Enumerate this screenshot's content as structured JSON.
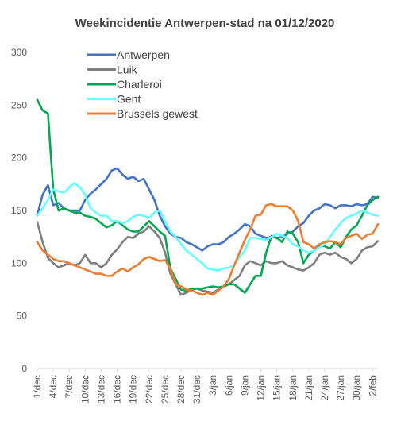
{
  "chart_data": {
    "type": "line",
    "title": "Weekincidentie Antwerpen-stad na 01/12/2020",
    "xlabel": "",
    "ylabel": "",
    "ylim": [
      0,
      300
    ],
    "yticks": [
      "0",
      "50",
      "100",
      "150",
      "200",
      "250",
      "300"
    ],
    "grid": false,
    "legend_position": "top-left",
    "x_tick_labels": [
      "1/dec",
      "4/dec",
      "7/dec",
      "10/dec",
      "13/dec",
      "16/dec",
      "19/dec",
      "22/dec",
      "25/dec",
      "28/dec",
      "31/dec",
      "3/jan",
      "6/jan",
      "9/jan",
      "12/jan",
      "15/jan",
      "18/jan",
      "21/jan",
      "24/jan",
      "27/jan",
      "30/jan",
      "2/feb"
    ],
    "x": [
      "1/dec",
      "2/dec",
      "3/dec",
      "4/dec",
      "5/dec",
      "6/dec",
      "7/dec",
      "8/dec",
      "9/dec",
      "10/dec",
      "11/dec",
      "12/dec",
      "13/dec",
      "14/dec",
      "15/dec",
      "16/dec",
      "17/dec",
      "18/dec",
      "19/dec",
      "20/dec",
      "21/dec",
      "22/dec",
      "23/dec",
      "24/dec",
      "25/dec",
      "26/dec",
      "27/dec",
      "28/dec",
      "29/dec",
      "30/dec",
      "31/dec",
      "1/jan",
      "2/jan",
      "3/jan",
      "4/jan",
      "5/jan",
      "6/jan",
      "7/jan",
      "8/jan",
      "9/jan",
      "10/jan",
      "11/jan",
      "12/jan",
      "13/jan",
      "14/jan",
      "15/jan",
      "16/jan",
      "17/jan",
      "18/jan",
      "19/jan",
      "20/jan",
      "21/jan",
      "22/jan",
      "23/jan",
      "24/jan",
      "25/jan",
      "26/jan",
      "27/jan",
      "28/jan",
      "29/jan",
      "30/jan",
      "31/jan",
      "1/feb",
      "2/feb",
      "3/feb"
    ],
    "series": [
      {
        "name": "Antwerpen",
        "color": "#4472c4",
        "values": [
          146,
          165,
          174,
          155,
          157,
          152,
          150,
          150,
          150,
          160,
          166,
          170,
          175,
          180,
          188,
          190,
          184,
          180,
          182,
          178,
          180,
          170,
          160,
          145,
          135,
          128,
          125,
          124,
          120,
          118,
          115,
          112,
          116,
          118,
          118,
          120,
          125,
          128,
          132,
          137,
          135,
          128,
          126,
          124,
          125,
          124,
          125,
          128,
          130,
          135,
          138,
          145,
          150,
          152,
          156,
          155,
          152,
          155,
          155,
          154,
          156,
          155,
          156,
          163,
          162
        ]
      },
      {
        "name": "Luik",
        "color": "#7f7f7f",
        "values": [
          139,
          120,
          105,
          100,
          96,
          98,
          100,
          98,
          100,
          108,
          100,
          100,
          96,
          100,
          108,
          113,
          120,
          125,
          124,
          128,
          130,
          135,
          130,
          124,
          110,
          90,
          80,
          70,
          72,
          75,
          76,
          74,
          73,
          72,
          75,
          78,
          80,
          84,
          88,
          98,
          102,
          100,
          98,
          102,
          100,
          100,
          102,
          98,
          96,
          94,
          93,
          96,
          100,
          108,
          110,
          108,
          110,
          106,
          104,
          100,
          104,
          112,
          115,
          116,
          121
        ]
      },
      {
        "name": "Charleroi",
        "color": "#00a650",
        "values": [
          255,
          245,
          242,
          170,
          150,
          152,
          150,
          148,
          148,
          145,
          144,
          142,
          138,
          134,
          136,
          140,
          136,
          132,
          130,
          130,
          135,
          140,
          135,
          130,
          126,
          95,
          85,
          75,
          74,
          76,
          76,
          76,
          77,
          78,
          77,
          78,
          80,
          80,
          76,
          72,
          80,
          88,
          88,
          110,
          126,
          124,
          120,
          130,
          128,
          120,
          100,
          108,
          112,
          117,
          116,
          114,
          120,
          115,
          125,
          132,
          136,
          145,
          155,
          160,
          163
        ]
      },
      {
        "name": "Gent",
        "color": "#66ffff",
        "values": [
          145,
          152,
          160,
          170,
          168,
          167,
          172,
          176,
          172,
          165,
          152,
          148,
          145,
          145,
          140,
          140,
          138,
          140,
          144,
          146,
          145,
          143,
          148,
          150,
          140,
          130,
          125,
          118,
          112,
          108,
          104,
          100,
          95,
          94,
          93,
          95,
          96,
          98,
          106,
          112,
          124,
          124,
          123,
          122,
          125,
          128,
          126,
          124,
          118,
          116,
          112,
          110,
          112,
          115,
          118,
          125,
          132,
          138,
          143,
          145,
          147,
          150,
          148,
          146,
          145
        ]
      },
      {
        "name": "Brussels gewest",
        "color": "#ed7d31",
        "values": [
          120,
          112,
          108,
          104,
          102,
          102,
          100,
          98,
          96,
          94,
          92,
          90,
          90,
          88,
          88,
          92,
          95,
          92,
          96,
          99,
          104,
          106,
          104,
          102,
          103,
          95,
          80,
          78,
          75,
          74,
          72,
          70,
          72,
          70,
          74,
          78,
          85,
          98,
          110,
          122,
          132,
          145,
          146,
          155,
          156,
          154,
          154,
          154,
          150,
          140,
          120,
          118,
          114,
          118,
          120,
          121,
          120,
          118,
          124,
          126,
          128,
          123,
          127,
          128,
          137
        ]
      }
    ]
  }
}
